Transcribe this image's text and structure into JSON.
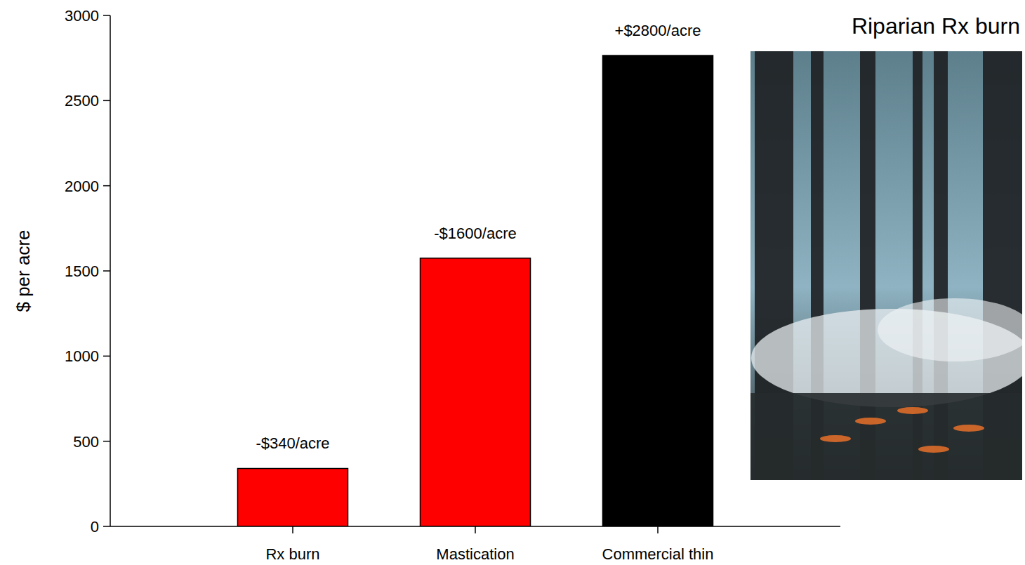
{
  "chart_data": {
    "type": "bar",
    "title": "Riparian Rx burn",
    "y_label": "$ per acre",
    "categories": [
      "Rx burn",
      "Mastication",
      "Commercial thin"
    ],
    "values": [
      340,
      1575,
      2765
    ],
    "annotations": [
      "-$340/acre",
      "-$1600/acre",
      "+$2800/acre"
    ],
    "colors": [
      "#ff0000",
      "#ff0000",
      "#000000"
    ],
    "ylim": [
      0,
      3000
    ],
    "yticks": [
      0,
      500,
      1000,
      1500,
      2000,
      2500,
      3000
    ],
    "grid": false
  }
}
